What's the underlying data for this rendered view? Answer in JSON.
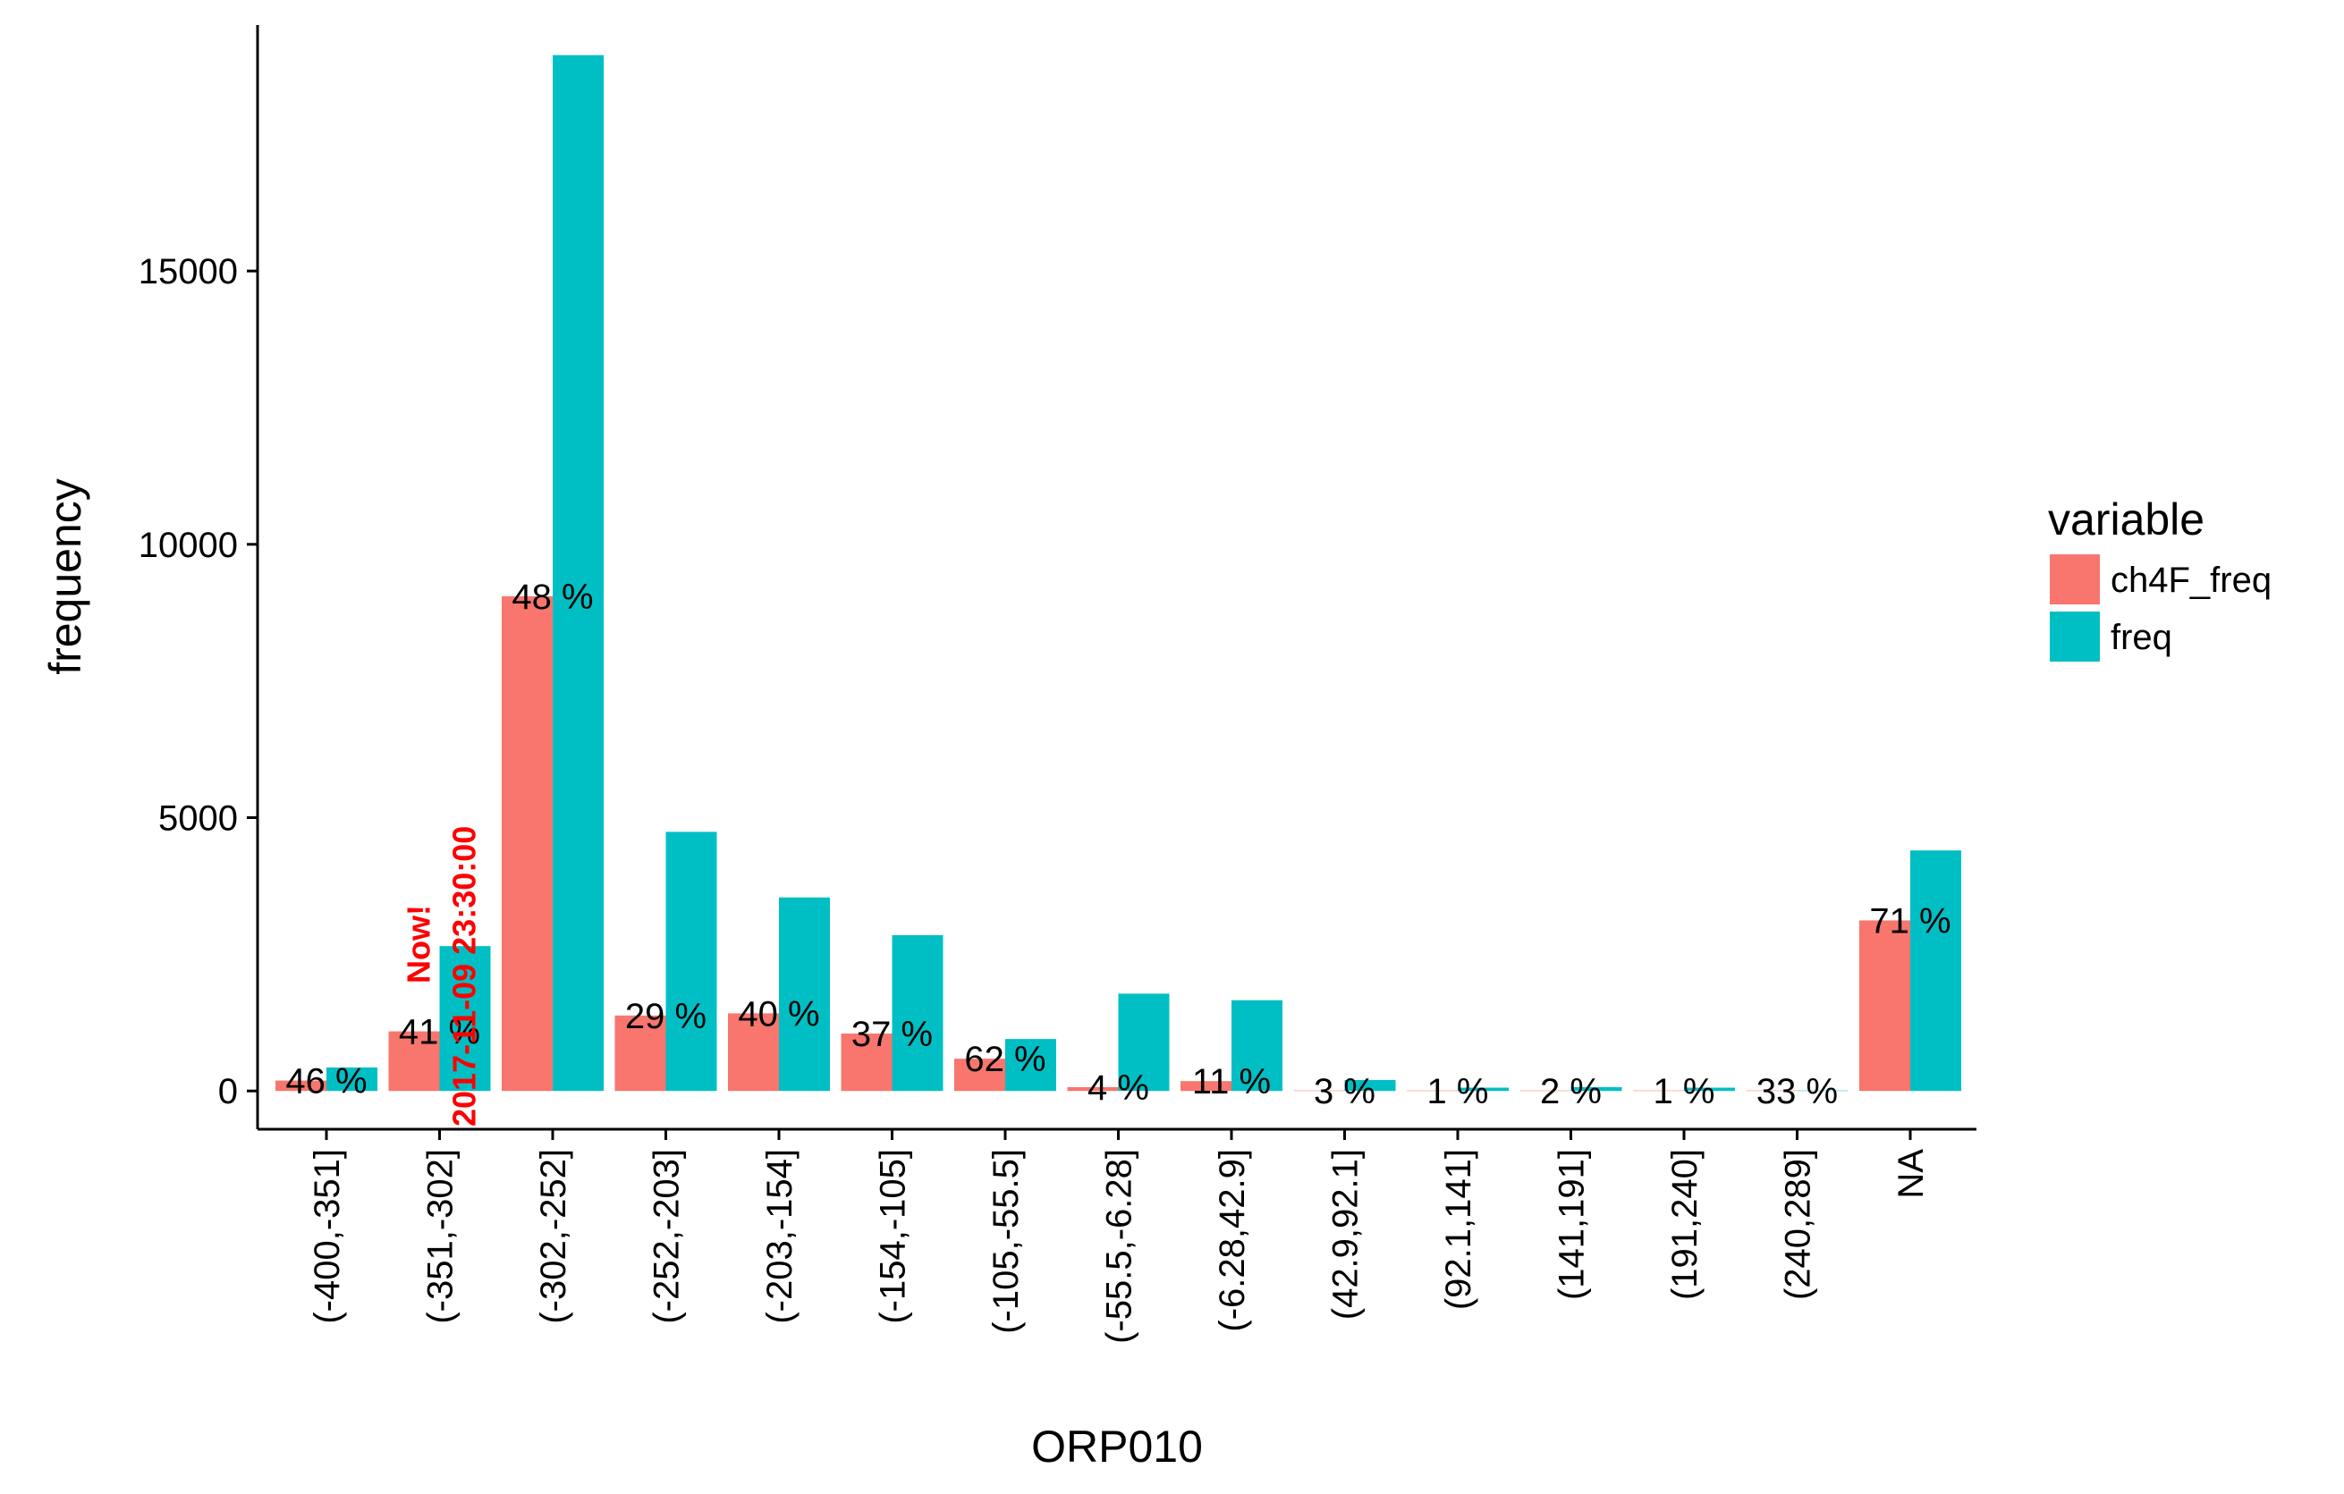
{
  "chart_data": {
    "type": "bar",
    "xlabel": "ORP010",
    "ylabel": "frequency",
    "ylim": [
      -700,
      19500
    ],
    "yticks": [
      0,
      5000,
      10000,
      15000
    ],
    "grid": false,
    "legend": {
      "title": "variable",
      "placement": "right"
    },
    "categories": [
      "(-400,-351]",
      "(-351,-302]",
      "(-302,-252]",
      "(-252,-203]",
      "(-203,-154]",
      "(-154,-105]",
      "(-105,-55.5]",
      "(-55.5,-6.28]",
      "(-6.28,42.9]",
      "(42.9,92.1]",
      "(92.1,141]",
      "(141,191]",
      "(191,240]",
      "(240,289]",
      "NA"
    ],
    "series": [
      {
        "name": "ch4F_freq",
        "color": "#F8766D",
        "values": [
          190,
          1090,
          9050,
          1380,
          1420,
          1050,
          590,
          70,
          180,
          6,
          1,
          1,
          1,
          1,
          3120
        ]
      },
      {
        "name": "freq",
        "color": "#00BFC4",
        "values": [
          430,
          2650,
          18950,
          4740,
          3540,
          2850,
          950,
          1780,
          1660,
          200,
          60,
          70,
          60,
          3,
          4400
        ]
      }
    ],
    "data_labels": [
      "46 %",
      "41 %",
      "48 %",
      "29 %",
      "40 %",
      "37 %",
      "62 %",
      "4 %",
      "11 %",
      "3 %",
      "1 %",
      "2 %",
      "1 %",
      "33 %",
      "71 %"
    ],
    "annotation": {
      "category_index": 1,
      "line1": "Now!",
      "line2": "2017-11-09 23:30:00",
      "color": "#FF0000"
    }
  }
}
